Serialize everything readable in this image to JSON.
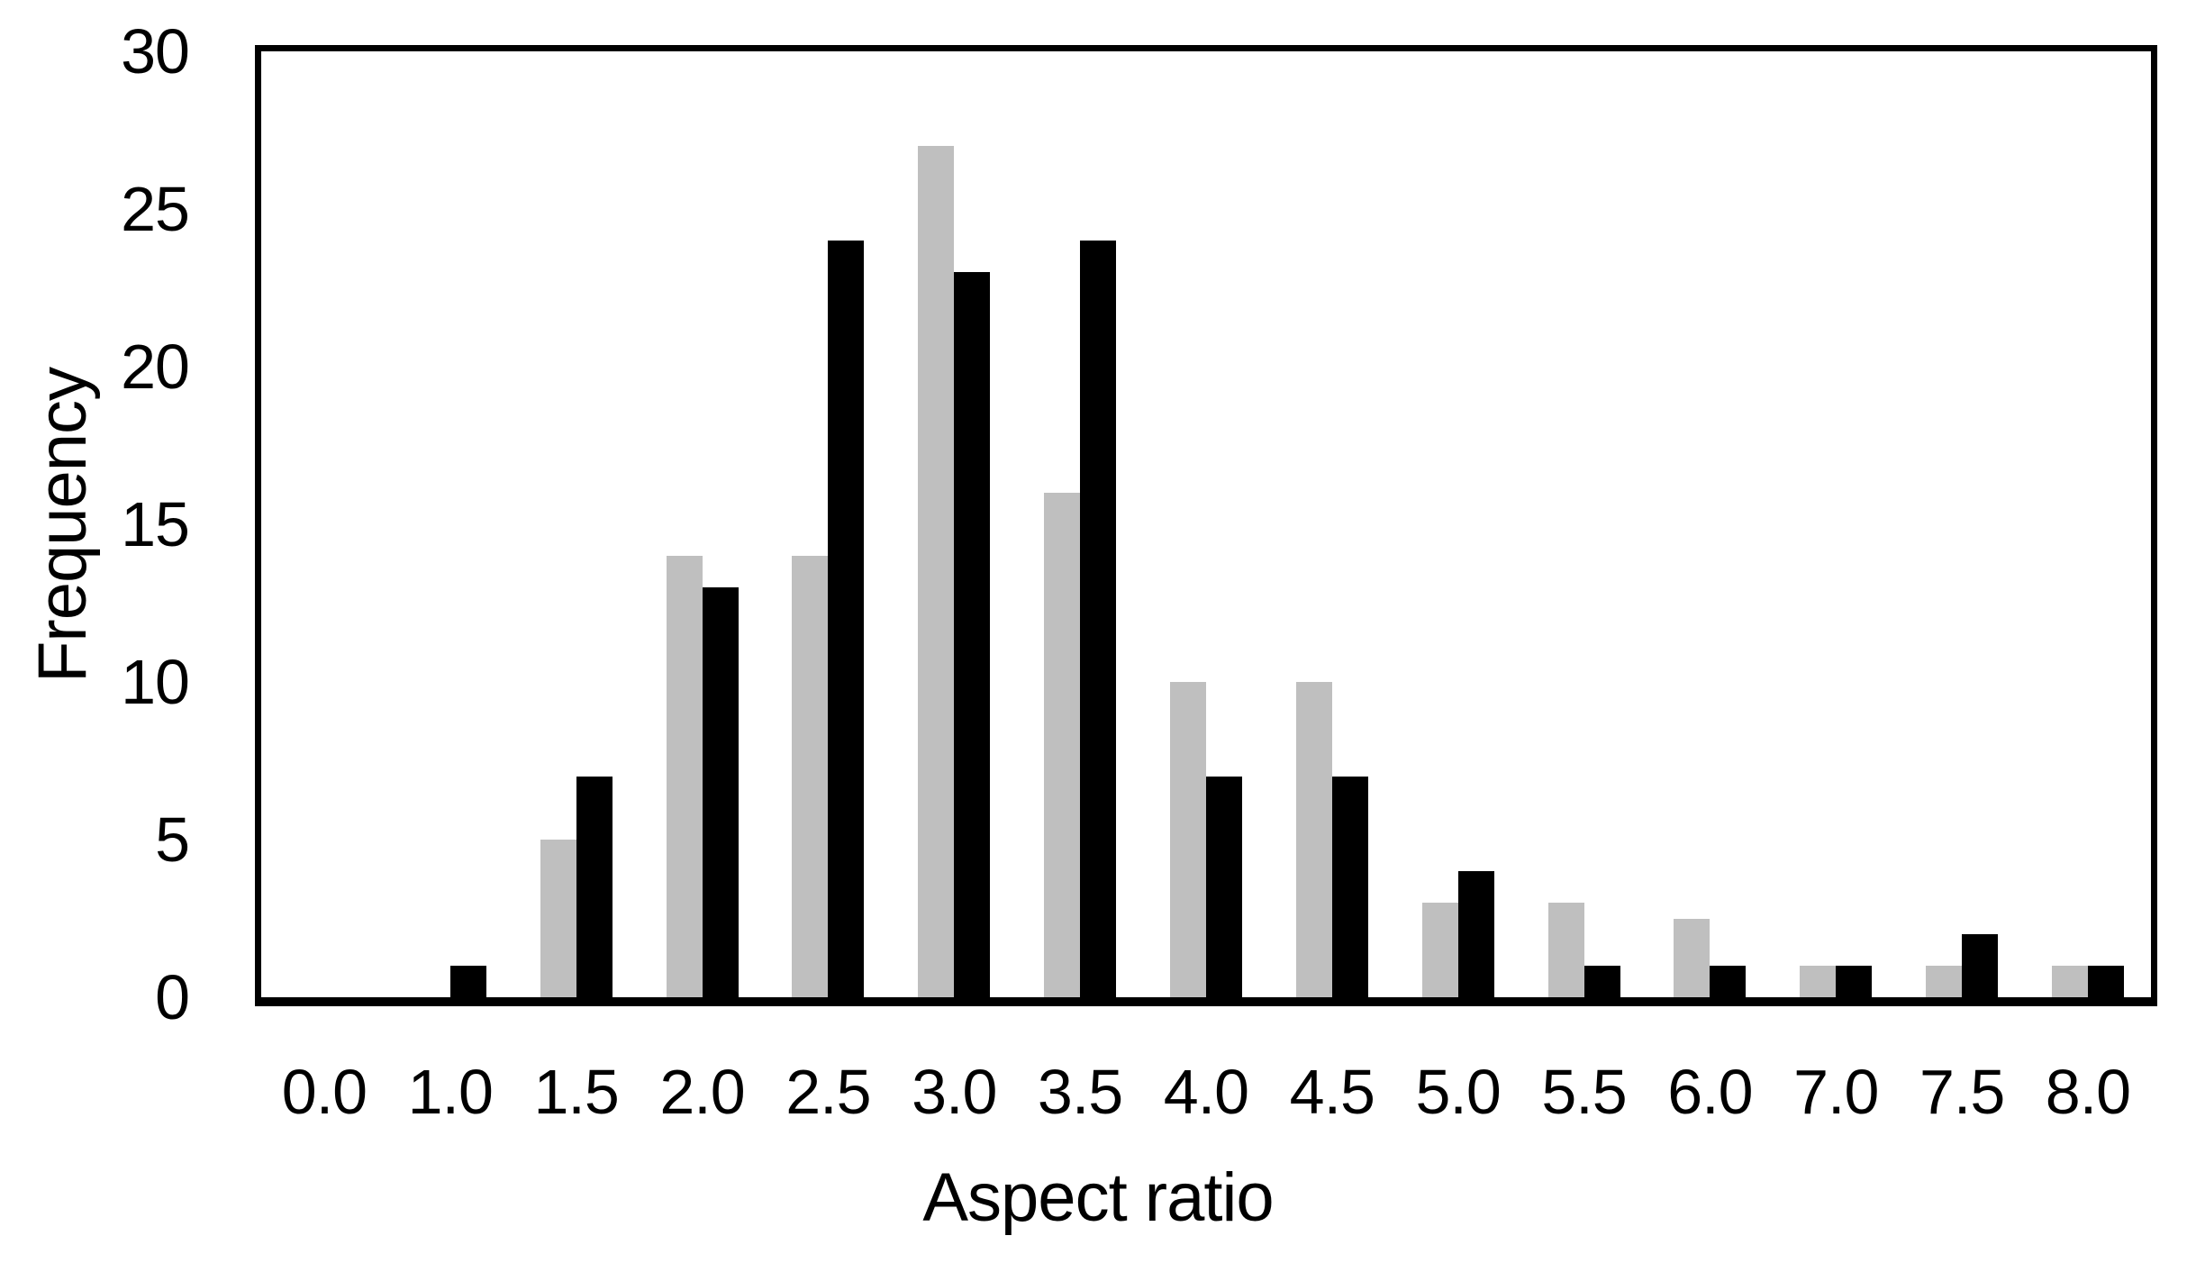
{
  "chart_data": {
    "type": "bar",
    "title": "",
    "xlabel": "Aspect ratio",
    "ylabel": "Frequency",
    "categories": [
      "0.0",
      "1.0",
      "1.5",
      "2.0",
      "2.5",
      "3.0",
      "3.5",
      "4.0",
      "4.5",
      "5.0",
      "5.5",
      "6.0",
      "7.0",
      "7.5",
      "8.0"
    ],
    "series": [
      {
        "name": "gray",
        "color": "#bfbfbf",
        "values": [
          0,
          0,
          5,
          14,
          14,
          27,
          16,
          10,
          10,
          3,
          3,
          2.5,
          1,
          1,
          1
        ]
      },
      {
        "name": "black",
        "color": "#000000",
        "values": [
          0,
          1,
          7,
          13,
          24,
          23,
          24,
          7,
          7,
          4,
          1,
          1,
          1,
          2,
          1
        ]
      }
    ],
    "ylim": [
      0,
      30
    ],
    "yticks": [
      0,
      5,
      10,
      15,
      20,
      25,
      30
    ],
    "grid": "off",
    "legend": "none",
    "axis_color": "#000000",
    "background_color": "#ffffff"
  }
}
